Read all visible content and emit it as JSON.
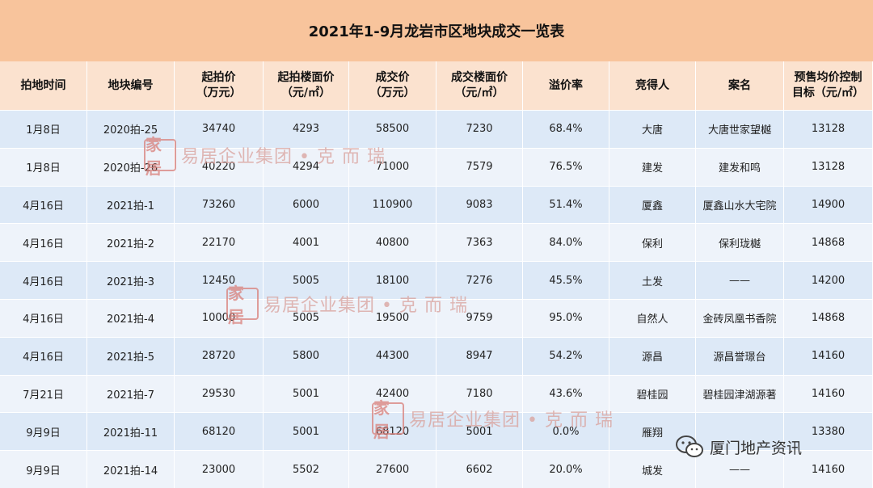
{
  "title": "2021年1-9月龙岩市区地块成交一览表",
  "headers": [
    "拍地时间",
    "地块编号",
    "起拍价\n（万元）",
    "起拍楼面价\n（元/㎡）",
    "成交价\n（万元）",
    "成交楼面价\n（元/㎡）",
    "溢价率",
    "竞得人",
    "案名",
    "预售均价控制\n目标（元/㎡）"
  ],
  "rows": [
    [
      "1月8日",
      "2020拍-25",
      "34740",
      "4293",
      "58500",
      "7230",
      "68.4%",
      "大唐",
      "大唐世家望樾",
      "13128"
    ],
    [
      "1月8日",
      "2020拍-26",
      "40220",
      "4294",
      "71000",
      "7579",
      "76.5%",
      "建发",
      "建发和鸣",
      "13128"
    ],
    [
      "4月16日",
      "2021拍-1",
      "73260",
      "6000",
      "110900",
      "9083",
      "51.4%",
      "厦鑫",
      "厦鑫山水大宅院",
      "14900"
    ],
    [
      "4月16日",
      "2021拍-2",
      "22170",
      "4001",
      "40800",
      "7363",
      "84.0%",
      "保利",
      "保利珑樾",
      "14868"
    ],
    [
      "4月16日",
      "2021拍-3",
      "12450",
      "5005",
      "18100",
      "7276",
      "45.5%",
      "土发",
      "——",
      "14200"
    ],
    [
      "4月16日",
      "2021拍-4",
      "10000",
      "5005",
      "19500",
      "9759",
      "95.0%",
      "自然人",
      "金砖凤凰书香院",
      "14868"
    ],
    [
      "4月16日",
      "2021拍-5",
      "28720",
      "5800",
      "44300",
      "8947",
      "54.2%",
      "源昌",
      "源昌誉璟台",
      "14160"
    ],
    [
      "7月21日",
      "2021拍-7",
      "29530",
      "5001",
      "42400",
      "7180",
      "43.6%",
      "碧桂园",
      "碧桂园津湖源著",
      "14160"
    ],
    [
      "9月9日",
      "2021拍-11",
      "68120",
      "5001",
      "68120",
      "5001",
      "0.0%",
      "雁翔",
      "",
      "13380"
    ],
    [
      "9月9日",
      "2021拍-14",
      "23000",
      "5502",
      "27600",
      "6602",
      "20.0%",
      "城发",
      "——",
      "14160"
    ]
  ],
  "watermark": {
    "seal": "家居",
    "text": "易居企业集团 • 克 而 瑞"
  },
  "credit": {
    "text": "厦门地产资讯",
    "icon": "wechat-icon"
  },
  "colors": {
    "title_bg": "#f8c49c",
    "header_bg": "#fbe2cf",
    "row_odd": "#dde9f7",
    "row_even": "#eef3fa"
  }
}
